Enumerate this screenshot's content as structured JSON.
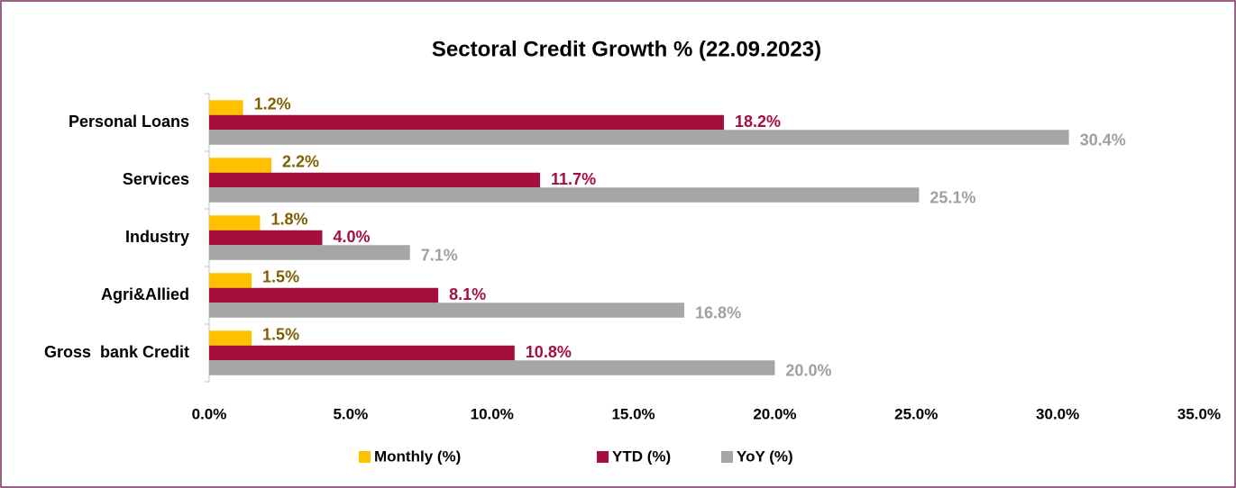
{
  "chart_data": {
    "type": "hbar",
    "title": "Sectoral Credit Growth % (22.09.2023)",
    "categories": [
      "Personal Loans",
      "Services",
      "Industry",
      "Agri&Allied",
      "Gross  bank Credit"
    ],
    "series": [
      {
        "name": "Monthly (%)",
        "color": "#FFC000",
        "label_color": "#7F6000",
        "values": [
          1.2,
          2.2,
          1.8,
          1.5,
          1.5
        ],
        "value_labels": [
          "1.2%",
          "2.2%",
          "1.8%",
          "1.5%",
          "1.5%"
        ]
      },
      {
        "name": "YTD (%)",
        "color": "#A50F3C",
        "label_color": "#A50F3C",
        "values": [
          18.2,
          11.7,
          4.0,
          8.1,
          10.8
        ],
        "value_labels": [
          "18.2%",
          "11.7%",
          "4.0%",
          "8.1%",
          "10.8%"
        ]
      },
      {
        "name": "YoY (%)",
        "color": "#A6A6A6",
        "label_color": "#A0A0A0",
        "values": [
          30.4,
          25.1,
          7.1,
          16.8,
          20.0
        ],
        "value_labels": [
          "30.4%",
          "25.1%",
          "7.1%",
          "16.8%",
          "20.0%"
        ]
      }
    ],
    "xlim": [
      0,
      35
    ],
    "xticks": [
      {
        "value": 0,
        "label": "0.0%"
      },
      {
        "value": 5,
        "label": "5.0%"
      },
      {
        "value": 10,
        "label": "10.0%"
      },
      {
        "value": 15,
        "label": "15.0%"
      },
      {
        "value": 20,
        "label": "20.0%"
      },
      {
        "value": 25,
        "label": "25.0%"
      },
      {
        "value": 30,
        "label": "30.0%"
      },
      {
        "value": 35,
        "label": "35.0%"
      }
    ],
    "grid": false,
    "legend": "bottom"
  }
}
